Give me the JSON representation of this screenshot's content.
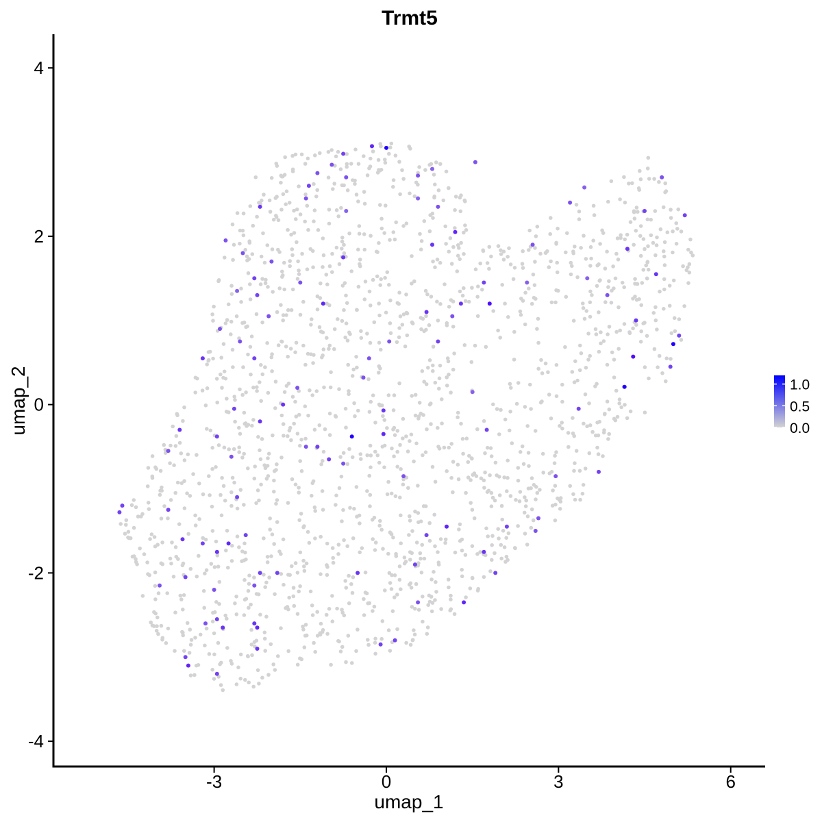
{
  "chart_data": {
    "type": "scatter",
    "title": "Trmt5",
    "xlabel": "umap_1",
    "ylabel": "umap_2",
    "xlim": [
      -5.8,
      6.6
    ],
    "ylim": [
      -4.3,
      4.4
    ],
    "x_ticks": [
      -3,
      0,
      3,
      6
    ],
    "y_ticks": [
      -4,
      -2,
      0,
      2,
      4
    ],
    "x_tick_labels": [
      "-3",
      "0",
      "3",
      "6"
    ],
    "y_tick_labels": [
      "-4",
      "-2",
      "0",
      "2",
      "4"
    ],
    "grid": false,
    "color_scale": {
      "low_color": "#d3d3d3",
      "high_color": "#0000ff",
      "min": 0.0,
      "max": 1.2,
      "legend_ticks": [
        0.0,
        0.5,
        1.0
      ],
      "legend_tick_labels": [
        "0.0",
        "0.5",
        "1.0"
      ],
      "legend_position": "right"
    },
    "highlighted_points": [
      {
        "x": 0.0,
        "y": 3.05,
        "value": 1.2
      },
      {
        "x": -0.25,
        "y": 3.07,
        "value": 0.9
      },
      {
        "x": -0.75,
        "y": 2.98,
        "value": 0.7
      },
      {
        "x": -1.2,
        "y": 2.75,
        "value": 0.6
      },
      {
        "x": -0.7,
        "y": 2.7,
        "value": 0.6
      },
      {
        "x": -1.35,
        "y": 2.6,
        "value": 0.7
      },
      {
        "x": -0.95,
        "y": 2.85,
        "value": 0.6
      },
      {
        "x": 0.55,
        "y": 2.72,
        "value": 0.6
      },
      {
        "x": 0.8,
        "y": 2.8,
        "value": 0.5
      },
      {
        "x": 1.55,
        "y": 2.88,
        "value": 0.6
      },
      {
        "x": -2.2,
        "y": 2.35,
        "value": 0.8
      },
      {
        "x": -1.4,
        "y": 2.45,
        "value": 0.6
      },
      {
        "x": -0.7,
        "y": 2.3,
        "value": 0.5
      },
      {
        "x": 0.55,
        "y": 2.45,
        "value": 0.5
      },
      {
        "x": 0.9,
        "y": 2.35,
        "value": 0.6
      },
      {
        "x": -2.8,
        "y": 1.95,
        "value": 0.6
      },
      {
        "x": -2.5,
        "y": 1.8,
        "value": 0.6
      },
      {
        "x": -0.75,
        "y": 1.75,
        "value": 0.8
      },
      {
        "x": 0.8,
        "y": 1.9,
        "value": 0.8
      },
      {
        "x": 1.2,
        "y": 2.05,
        "value": 0.9
      },
      {
        "x": -2.3,
        "y": 1.5,
        "value": 0.7
      },
      {
        "x": -1.5,
        "y": 1.45,
        "value": 0.6
      },
      {
        "x": -2.6,
        "y": 1.35,
        "value": 0.5
      },
      {
        "x": -2.05,
        "y": 1.05,
        "value": 0.6
      },
      {
        "x": -1.1,
        "y": 1.2,
        "value": 0.9
      },
      {
        "x": 0.7,
        "y": 1.1,
        "value": 0.8
      },
      {
        "x": 1.3,
        "y": 1.2,
        "value": 0.8
      },
      {
        "x": 1.8,
        "y": 1.2,
        "value": 1.1
      },
      {
        "x": 1.7,
        "y": 1.45,
        "value": 0.7
      },
      {
        "x": 2.45,
        "y": 1.45,
        "value": 0.5
      },
      {
        "x": 3.5,
        "y": 1.5,
        "value": 0.5
      },
      {
        "x": 3.85,
        "y": 1.3,
        "value": 0.6
      },
      {
        "x": 4.2,
        "y": 1.85,
        "value": 0.8
      },
      {
        "x": 4.7,
        "y": 1.55,
        "value": 0.8
      },
      {
        "x": 4.35,
        "y": 1.0,
        "value": 0.8
      },
      {
        "x": 5.0,
        "y": 0.72,
        "value": 1.2
      },
      {
        "x": 5.1,
        "y": 0.82,
        "value": 0.7
      },
      {
        "x": 4.3,
        "y": 0.57,
        "value": 1.1
      },
      {
        "x": 4.15,
        "y": 0.21,
        "value": 1.2
      },
      {
        "x": 4.95,
        "y": 0.45,
        "value": 0.7
      },
      {
        "x": 4.5,
        "y": 2.3,
        "value": 0.7
      },
      {
        "x": 4.8,
        "y": 2.7,
        "value": 0.6
      },
      {
        "x": 5.2,
        "y": 2.25,
        "value": 0.7
      },
      {
        "x": 3.2,
        "y": 2.4,
        "value": 0.6
      },
      {
        "x": 3.45,
        "y": 2.58,
        "value": 0.5
      },
      {
        "x": 2.55,
        "y": 1.9,
        "value": 0.6
      },
      {
        "x": -3.2,
        "y": 0.55,
        "value": 0.8
      },
      {
        "x": -2.3,
        "y": 0.55,
        "value": 0.7
      },
      {
        "x": -2.9,
        "y": 0.9,
        "value": 0.6
      },
      {
        "x": -1.8,
        "y": 0.0,
        "value": 0.8
      },
      {
        "x": -1.55,
        "y": 0.2,
        "value": 0.6
      },
      {
        "x": -2.65,
        "y": -0.05,
        "value": 0.7
      },
      {
        "x": -2.2,
        "y": -0.2,
        "value": 0.8
      },
      {
        "x": -0.6,
        "y": -0.38,
        "value": 1.2
      },
      {
        "x": -0.05,
        "y": -0.35,
        "value": 0.9
      },
      {
        "x": -0.05,
        "y": -0.07,
        "value": 0.8
      },
      {
        "x": -0.4,
        "y": 0.32,
        "value": 0.6
      },
      {
        "x": -0.3,
        "y": 0.55,
        "value": 0.6
      },
      {
        "x": -3.6,
        "y": -0.3,
        "value": 0.8
      },
      {
        "x": -3.8,
        "y": -0.55,
        "value": 0.6
      },
      {
        "x": -2.95,
        "y": -0.38,
        "value": 0.7
      },
      {
        "x": -2.7,
        "y": -0.62,
        "value": 0.6
      },
      {
        "x": -1.4,
        "y": -0.5,
        "value": 0.6
      },
      {
        "x": -1.2,
        "y": -0.5,
        "value": 0.7
      },
      {
        "x": -0.75,
        "y": -0.7,
        "value": 0.6
      },
      {
        "x": 1.75,
        "y": -0.3,
        "value": 0.7
      },
      {
        "x": 1.5,
        "y": 0.15,
        "value": 0.5
      },
      {
        "x": 3.35,
        "y": -0.05,
        "value": 0.7
      },
      {
        "x": 2.95,
        "y": -0.85,
        "value": 0.6
      },
      {
        "x": 3.7,
        "y": -0.8,
        "value": 0.7
      },
      {
        "x": -4.6,
        "y": -1.2,
        "value": 0.7
      },
      {
        "x": -4.65,
        "y": -1.28,
        "value": 0.7
      },
      {
        "x": -3.8,
        "y": -1.25,
        "value": 0.7
      },
      {
        "x": -3.55,
        "y": -1.6,
        "value": 0.8
      },
      {
        "x": -3.2,
        "y": -1.65,
        "value": 0.7
      },
      {
        "x": -2.95,
        "y": -1.75,
        "value": 0.8
      },
      {
        "x": -2.75,
        "y": -1.65,
        "value": 0.9
      },
      {
        "x": -2.6,
        "y": -1.1,
        "value": 0.7
      },
      {
        "x": -2.45,
        "y": -1.55,
        "value": 0.7
      },
      {
        "x": -2.2,
        "y": -2.0,
        "value": 0.7
      },
      {
        "x": -1.9,
        "y": -2.0,
        "value": 0.7
      },
      {
        "x": -3.95,
        "y": -2.15,
        "value": 0.6
      },
      {
        "x": -3.5,
        "y": -2.05,
        "value": 0.7
      },
      {
        "x": -3.0,
        "y": -2.2,
        "value": 0.6
      },
      {
        "x": -2.3,
        "y": -2.15,
        "value": 0.6
      },
      {
        "x": -3.15,
        "y": -2.6,
        "value": 0.6
      },
      {
        "x": -2.85,
        "y": -2.65,
        "value": 0.8
      },
      {
        "x": -2.95,
        "y": -2.55,
        "value": 0.7
      },
      {
        "x": -2.3,
        "y": -2.6,
        "value": 0.8
      },
      {
        "x": -2.25,
        "y": -2.65,
        "value": 0.9
      },
      {
        "x": -2.25,
        "y": -2.9,
        "value": 0.8
      },
      {
        "x": -3.45,
        "y": -3.1,
        "value": 0.9
      },
      {
        "x": -3.5,
        "y": -3.0,
        "value": 0.7
      },
      {
        "x": -2.95,
        "y": -3.2,
        "value": 0.7
      },
      {
        "x": -0.5,
        "y": -2.0,
        "value": 0.8
      },
      {
        "x": -0.1,
        "y": -2.85,
        "value": 0.7
      },
      {
        "x": 0.15,
        "y": -2.8,
        "value": 0.7
      },
      {
        "x": 0.5,
        "y": -1.9,
        "value": 0.7
      },
      {
        "x": 0.55,
        "y": -2.35,
        "value": 0.6
      },
      {
        "x": 0.7,
        "y": -1.55,
        "value": 0.7
      },
      {
        "x": 1.05,
        "y": -1.45,
        "value": 0.9
      },
      {
        "x": 1.35,
        "y": -2.35,
        "value": 0.9
      },
      {
        "x": 1.7,
        "y": -1.75,
        "value": 0.8
      },
      {
        "x": 1.9,
        "y": -2.0,
        "value": 0.7
      },
      {
        "x": 2.65,
        "y": -1.35,
        "value": 0.6
      },
      {
        "x": 2.6,
        "y": -1.5,
        "value": 0.6
      },
      {
        "x": 2.1,
        "y": -1.45,
        "value": 0.7
      },
      {
        "x": -1.0,
        "y": -0.65,
        "value": 0.7
      },
      {
        "x": 0.3,
        "y": -0.85,
        "value": 0.6
      },
      {
        "x": -2.55,
        "y": 0.75,
        "value": 0.6
      },
      {
        "x": -2.25,
        "y": 1.3,
        "value": 0.7
      },
      {
        "x": -2.0,
        "y": 1.7,
        "value": 0.6
      },
      {
        "x": 0.05,
        "y": 0.75,
        "value": 0.6
      },
      {
        "x": 0.9,
        "y": 0.75,
        "value": 0.7
      },
      {
        "x": 1.15,
        "y": 1.05,
        "value": 0.6
      }
    ]
  }
}
